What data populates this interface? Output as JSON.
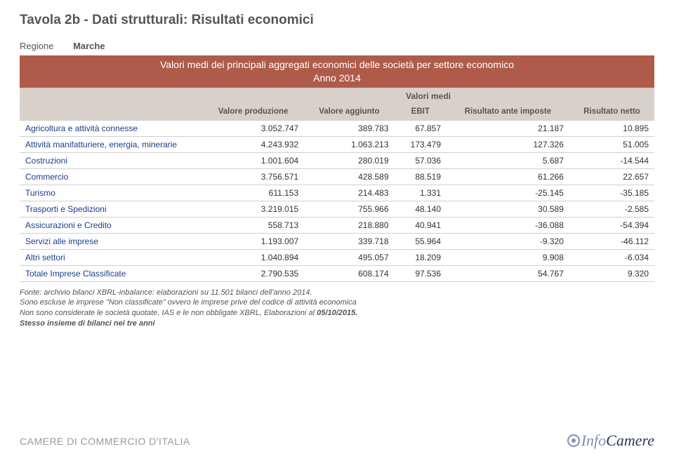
{
  "page_title": "Tavola 2b - Dati strutturali: Risultati economici",
  "region": {
    "label": "Regione",
    "value": "Marche"
  },
  "table": {
    "title_line1": "Valori medi dei principali aggregati economici delle società per settore economico",
    "title_line2": "Anno 2014",
    "super_header": "Valori medi",
    "columns": [
      "Valore produzione",
      "Valore aggiunto",
      "EBIT",
      "Risultato ante imposte",
      "Risultato netto"
    ],
    "rows": [
      {
        "label": "Agricoltura e attività connesse",
        "values": [
          "3.052.747",
          "389.783",
          "67.857",
          "21.187",
          "10.895"
        ]
      },
      {
        "label": "Attività manifatturiere, energia, minerarie",
        "values": [
          "4.243.932",
          "1.063.213",
          "173.479",
          "127.326",
          "51.005"
        ]
      },
      {
        "label": "Costruzioni",
        "values": [
          "1.001.604",
          "280.019",
          "57.036",
          "5.687",
          "-14.544"
        ]
      },
      {
        "label": "Commercio",
        "values": [
          "3.756.571",
          "428.589",
          "88.519",
          "61.266",
          "22.657"
        ]
      },
      {
        "label": "Turismo",
        "values": [
          "611.153",
          "214.483",
          "1.331",
          "-25.145",
          "-35.185"
        ]
      },
      {
        "label": "Trasporti e Spedizioni",
        "values": [
          "3.219.015",
          "755.966",
          "48.140",
          "30.589",
          "-2.585"
        ]
      },
      {
        "label": "Assicurazioni e Credito",
        "values": [
          "558.713",
          "218.880",
          "40.941",
          "-36.088",
          "-54.394"
        ]
      },
      {
        "label": "Servizi alle imprese",
        "values": [
          "1.193.007",
          "339.718",
          "55.964",
          "-9.320",
          "-46.112"
        ]
      },
      {
        "label": "Altri settori",
        "values": [
          "1.040.894",
          "495.057",
          "18.209",
          "9.908",
          "-6.034"
        ]
      },
      {
        "label": "Totale Imprese Classificate",
        "values": [
          "2.790.535",
          "608.174",
          "97.536",
          "54.767",
          "9.320"
        ]
      }
    ]
  },
  "footnotes": {
    "line1": "Fonte: archivio bilanci XBRL-inbalance: elaborazioni su 11.501 bilanci dell'anno 2014.",
    "line2_a": "Sono escluse le imprese \"Non classificate\" ovvero le imprese prive del codice di attività economica",
    "line2_b": "Non sono considerate le società quotate, IAS e le non obbligate XBRL, Elaborazioni al ",
    "line2_bold": "05/10/2015.",
    "line3": "Stesso insieme di bilanci nei tre anni"
  },
  "footer": {
    "left": "CAMERE DI COMMERCIO D'ITALIA",
    "right_info": "Info",
    "right_camere": "Camere"
  }
}
